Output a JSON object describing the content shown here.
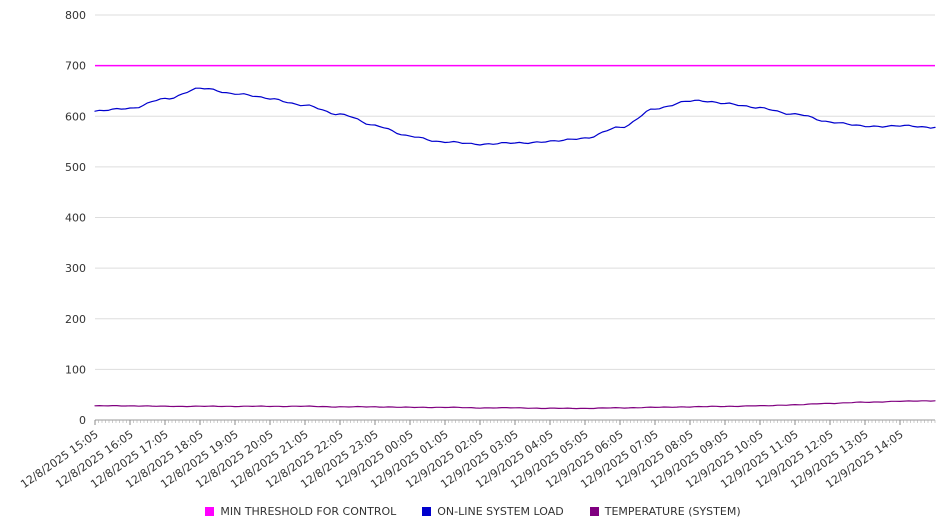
{
  "chart_data": {
    "type": "line",
    "title": "",
    "xlabel": "",
    "ylabel": "",
    "ylim": [
      0,
      800
    ],
    "y_ticks": [
      0,
      100,
      200,
      300,
      400,
      500,
      600,
      700,
      800
    ],
    "grid": true,
    "legend_position": "bottom",
    "x_label_rotation": -35,
    "categories": [
      "12/8/2025 15:05",
      "12/8/2025 16:05",
      "12/8/2025 17:05",
      "12/8/2025 18:05",
      "12/8/2025 19:05",
      "12/8/2025 20:05",
      "12/8/2025 21:05",
      "12/8/2025 22:05",
      "12/8/2025 23:05",
      "12/9/2025 00:05",
      "12/9/2025 01:05",
      "12/9/2025 02:05",
      "12/9/2025 03:05",
      "12/9/2025 04:05",
      "12/9/2025 05:05",
      "12/9/2025 06:05",
      "12/9/2025 07:05",
      "12/9/2025 08:05",
      "12/9/2025 09:05",
      "12/9/2025 10:05",
      "12/9/2025 11:05",
      "12/9/2025 12:05",
      "12/9/2025 13:05",
      "12/9/2025 14:05"
    ],
    "series": [
      {
        "id": "min-threshold-for-control",
        "name": "MIN THRESHOLD FOR CONTROL",
        "type": "threshold",
        "color": "#ff00ff",
        "value": 700
      },
      {
        "id": "online-system-load",
        "name": "ON-LINE SYSTEM LOAD",
        "type": "line",
        "color": "#0000cd",
        "values": [
          610,
          616,
          634,
          655,
          645,
          635,
          621,
          604,
          582,
          560,
          549,
          545,
          547,
          550,
          557,
          578,
          614,
          631,
          626,
          616,
          604,
          589,
          580,
          581
        ],
        "edge_value": 578,
        "jitter": 1.5
      },
      {
        "id": "system-temperature",
        "name": "TEMPERATURE (SYSTEM)",
        "type": "line",
        "color": "#800080",
        "values": [
          28,
          28,
          27,
          27,
          27,
          27,
          27,
          26,
          26,
          25,
          25,
          24,
          24,
          23,
          23,
          24,
          25,
          26,
          27,
          28,
          30,
          33,
          35,
          37
        ],
        "edge_value": 38,
        "jitter": 0.5
      }
    ]
  }
}
